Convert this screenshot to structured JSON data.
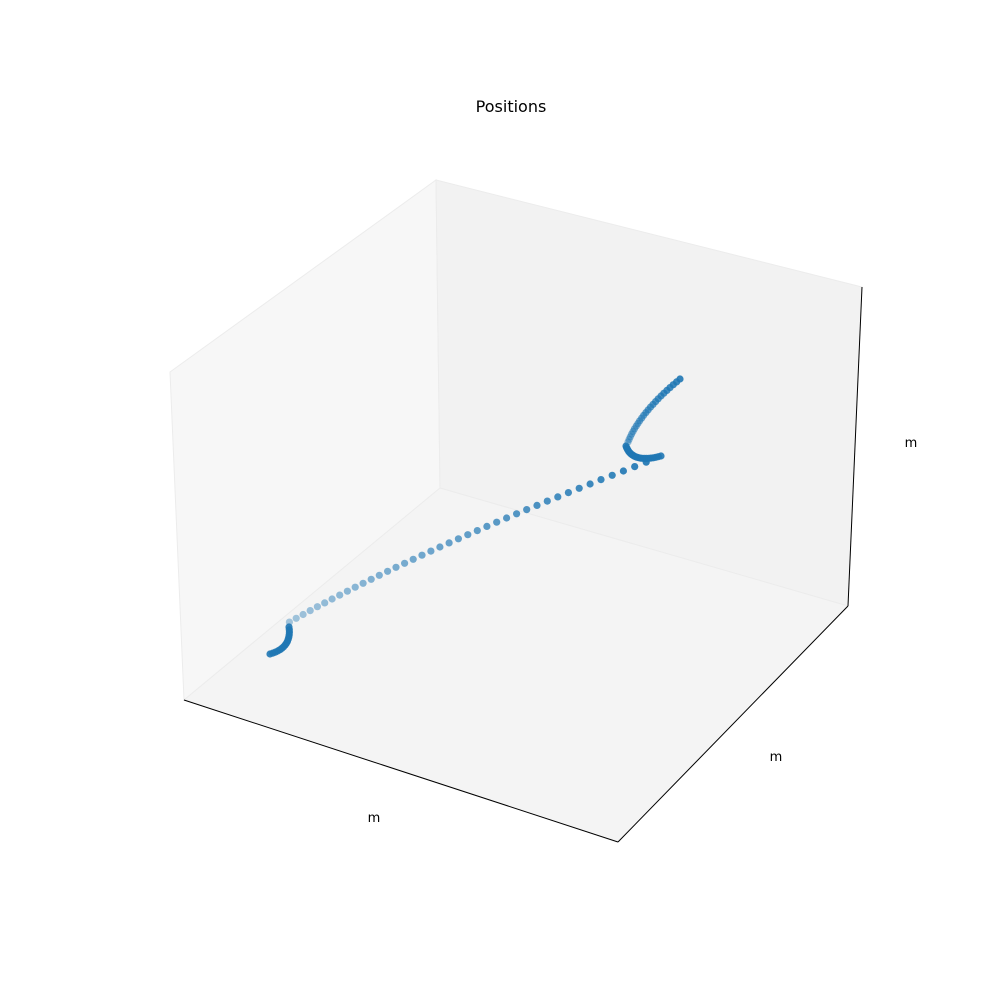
{
  "chart_data": {
    "type": "scatter",
    "projection": "3d",
    "title": "Positions",
    "xlabel": "m",
    "ylabel": "m",
    "zlabel": "m",
    "tick_labels": "hidden",
    "grid": false,
    "marker_color": "#1f77b4",
    "depth_shading": true,
    "pane_colors": {
      "left_pane": "#f7f7f7",
      "back_pane": "#f2f2f2",
      "floor_pane": "#f4f4f4"
    },
    "trajectory_segments": [
      {
        "role": "start-cluster-curl",
        "points": 16
      },
      {
        "role": "transit-line",
        "points": 40
      },
      {
        "role": "end-cluster-bend",
        "points": 22
      },
      {
        "role": "end-rising-arc",
        "points": 24
      }
    ]
  }
}
